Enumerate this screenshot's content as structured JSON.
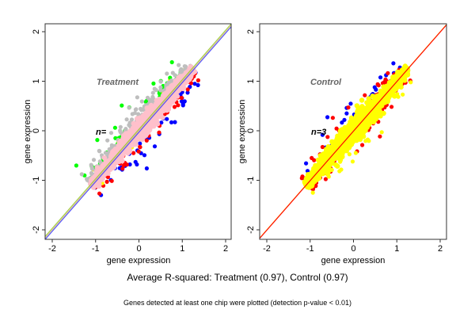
{
  "chart_data": [
    {
      "type": "scatter",
      "title": "Treatment",
      "annotation": "n=",
      "xlabel": "gene expression",
      "ylabel": "gene expression",
      "xlim": [
        -2.15,
        2.15
      ],
      "ylim": [
        -2.15,
        2.15
      ],
      "xticks": [
        "-2",
        "-1",
        "0",
        "1",
        "2"
      ],
      "yticks": [
        "-2",
        "-1",
        "0",
        "1",
        "2"
      ],
      "reference_lines": [
        {
          "slope": 1,
          "intercept": 0.03,
          "color": "#9acd32"
        },
        {
          "slope": 1,
          "intercept": 0.0,
          "color": "#d2b48c"
        },
        {
          "slope": 1,
          "intercept": -0.03,
          "color": "#4040ff"
        }
      ],
      "series": [
        {
          "name": "blue",
          "color": "#0000ff",
          "side": "below",
          "count": 60,
          "spread": 0.35
        },
        {
          "name": "red",
          "color": "#ff0000",
          "side": "below",
          "count": 70,
          "spread": 0.22
        },
        {
          "name": "yellow",
          "color": "#ffff00",
          "side": "both",
          "count": 30,
          "spread": 0.15
        },
        {
          "name": "green",
          "color": "#00ff00",
          "side": "above",
          "count": 70,
          "spread": 0.3
        },
        {
          "name": "gray",
          "color": "#bebebe",
          "side": "above",
          "count": 260,
          "spread": 0.22
        },
        {
          "name": "pink",
          "color": "#ffc0cb",
          "side": "core",
          "count": 1400,
          "spread": 0.12
        }
      ],
      "x_range_of_points": [
        -1.1,
        1.25
      ]
    },
    {
      "type": "scatter",
      "title": "Control",
      "annotation": "n=3",
      "xlabel": "gene expression",
      "ylabel": "gene expression",
      "xlim": [
        -2.15,
        2.15
      ],
      "ylim": [
        -2.15,
        2.15
      ],
      "xticks": [
        "-2",
        "-1",
        "0",
        "1",
        "2"
      ],
      "yticks": [
        "-2",
        "-1",
        "0",
        "1",
        "2"
      ],
      "reference_lines": [
        {
          "slope": 1,
          "intercept": 0.0,
          "color": "#ff8c00"
        },
        {
          "slope": 1,
          "intercept": -0.01,
          "color": "#ff0000"
        }
      ],
      "series": [
        {
          "name": "blue",
          "color": "#0000ff",
          "side": "above",
          "count": 50,
          "spread": 0.35
        },
        {
          "name": "red",
          "color": "#ff0000",
          "side": "both",
          "count": 120,
          "spread": 0.2
        },
        {
          "name": "yellow",
          "color": "#ffff00",
          "side": "core",
          "count": 1500,
          "spread": 0.14
        },
        {
          "name": "yellow-outliers",
          "color": "#ffff00",
          "side": "below",
          "count": 40,
          "spread": 0.3
        }
      ],
      "x_range_of_points": [
        -1.1,
        1.25
      ]
    }
  ],
  "caption": "Average R-squared: Treatment (0.97), Control (0.97)",
  "subcaption": "Genes detected at least one chip were plotted (detection p-value < 0.01)"
}
